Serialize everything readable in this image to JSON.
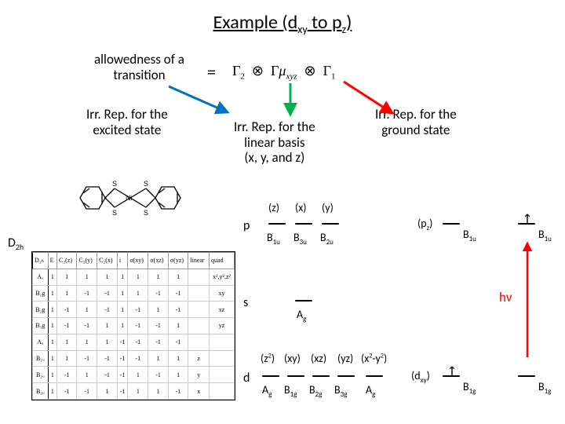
{
  "title": {
    "main": "Example (d",
    "sub1": "xy",
    "mid": " to p",
    "sub2": "z",
    "end": ")"
  },
  "allowedness": {
    "l1": "allowedness of a",
    "l2": "transition"
  },
  "equals": "=",
  "gamma": {
    "g2": "Γ",
    "s2": "2",
    "tensor": "⊗",
    "gmu": "Γ",
    "mu": "μ",
    "muidx": "xyz",
    "g1": "Γ",
    "s1": "1"
  },
  "excited": {
    "l1": "Irr. Rep. for the",
    "l2": "excited state"
  },
  "linear": {
    "l1": "Irr. Rep. for the",
    "l2": "linear basis",
    "l3": "(x, y, and z)"
  },
  "ground": {
    "l1": "Irr. Rep. for the",
    "l2": "ground state"
  },
  "d2h": {
    "sym": "D",
    "sub": "2h"
  },
  "orb_p": "p",
  "orb_s": "s",
  "orb_d": "d",
  "p_top": {
    "z": "(z)",
    "x": "(x)",
    "y": "(y)"
  },
  "p_bot": {
    "b1u": "B",
    "b1u_s": "1u",
    "b3u": "B",
    "b3u_s": "3u",
    "b2u": "B",
    "b2u_s": "2u"
  },
  "s_sym": "A",
  "s_sym_s": "g",
  "d_top": {
    "z2": "(z",
    "z2_sup": "2",
    "z2_end": ")",
    "xy": "(xy)",
    "xz": "(xz)",
    "yz": "(yz)",
    "x2y2": "(x",
    "x2y2_sup1": "2",
    "x2y2_mid": "-y",
    "x2y2_sup2": "2",
    "x2y2_end": ")"
  },
  "d_bot": {
    "ag1": "A",
    "ag1_s": "g",
    "b1g": "B",
    "b1g_s": "1g",
    "b2g": "B",
    "b2g_s": "2g",
    "b3g": "B",
    "b3g_s": "3g",
    "ag2": "A",
    "ag2_s": "g"
  },
  "pz_lbl": "(p",
  "pz_lbl_s": "z",
  "pz_lbl_end": ")",
  "dxy_lbl": "(d",
  "dxy_lbl_s": "xy",
  "dxy_lbl_end": ")",
  "b1u": "B",
  "b1u_s": "1u",
  "b1g": "B",
  "b1g_s": "1g",
  "hv": "hν",
  "colors": {
    "blue": "#0070c0",
    "green": "#00b050",
    "red": "#ff0000"
  },
  "style": {
    "arrow_width": 3
  },
  "char_table": {
    "header": [
      "D₂ₕ",
      "E",
      "C₂(z)",
      "C₂(y)",
      "C₂(x)",
      "i",
      "σ(xy)",
      "σ(xz)",
      "σ(yz)",
      "linear",
      "quad"
    ],
    "rows": [
      [
        "Aₓ",
        "1",
        "1",
        "1",
        "1",
        "1",
        "1",
        "1",
        "1",
        "",
        "x²,y²,z²"
      ],
      [
        "B₁g",
        "1",
        "1",
        "-1",
        "-1",
        "1",
        "1",
        "-1",
        "-1",
        "",
        "xy"
      ],
      [
        "B₂g",
        "1",
        "-1",
        "1",
        "-1",
        "1",
        "-1",
        "1",
        "-1",
        "",
        "xz"
      ],
      [
        "B₃g",
        "1",
        "-1",
        "-1",
        "1",
        "1",
        "-1",
        "-1",
        "1",
        "",
        "yz"
      ],
      [
        "Aᵤ",
        "1",
        "1",
        "1",
        "1",
        "-1",
        "-1",
        "-1",
        "-1",
        "",
        ""
      ],
      [
        "B₁ᵤ",
        "1",
        "1",
        "-1",
        "-1",
        "-1",
        "-1",
        "1",
        "1",
        "z",
        ""
      ],
      [
        "B₂ᵤ",
        "1",
        "-1",
        "1",
        "-1",
        "-1",
        "1",
        "-1",
        "1",
        "y",
        ""
      ],
      [
        "B₃ᵤ",
        "1",
        "-1",
        "-1",
        "1",
        "-1",
        "1",
        "1",
        "-1",
        "x",
        ""
      ]
    ]
  }
}
